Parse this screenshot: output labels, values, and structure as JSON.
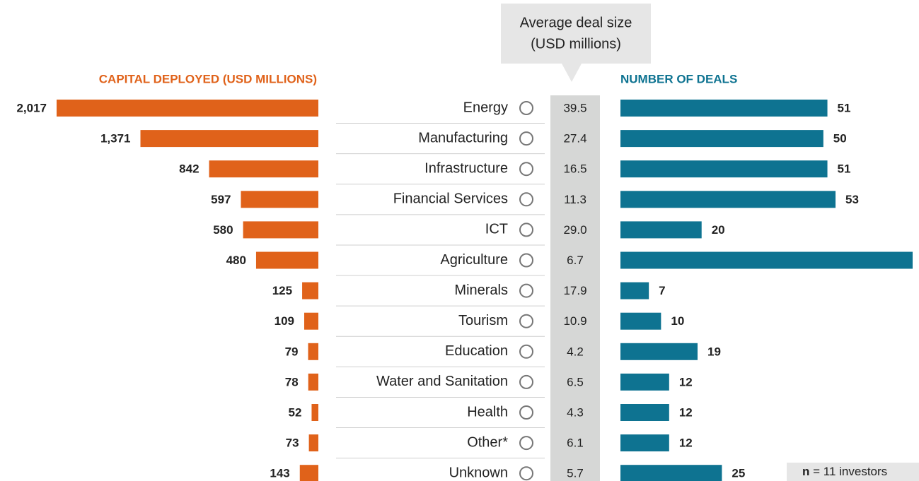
{
  "chart_data": {
    "type": "butterfly",
    "categories": [
      "Energy",
      "Manufacturing",
      "Infrastructure",
      "Financial Services",
      "ICT",
      "Agriculture",
      "Minerals",
      "Tourism",
      "Education",
      "Water and Sanitation",
      "Health",
      "Other*",
      "Unknown"
    ],
    "series": [
      {
        "name": "CAPITAL DEPLOYED (USD MILLIONS)",
        "color": "#e0621a",
        "values": [
          2017,
          1371,
          842,
          597,
          580,
          480,
          125,
          109,
          79,
          78,
          52,
          73,
          143
        ],
        "value_labels": [
          "2,017",
          "1,371",
          "842",
          "597",
          "580",
          "480",
          "125",
          "109",
          "79",
          "78",
          "52",
          "73",
          "143"
        ]
      },
      {
        "name": "NUMBER OF DEALS",
        "color": "#0e7391",
        "values": [
          51,
          50,
          51,
          53,
          20,
          72,
          7,
          10,
          19,
          12,
          12,
          12,
          25
        ]
      }
    ],
    "column": {
      "title": [
        "Average deal size",
        "(USD millions)"
      ],
      "values": [
        39.5,
        27.4,
        16.5,
        11.3,
        29.0,
        6.7,
        17.9,
        10.9,
        4.2,
        6.5,
        4.3,
        6.1,
        5.7
      ],
      "value_labels": [
        "39.5",
        "27.4",
        "16.5",
        "11.3",
        "29.0",
        "6.7",
        "17.9",
        "10.9",
        "4.2",
        "6.5",
        "4.3",
        "6.1",
        "5.7"
      ]
    },
    "note": {
      "label": "n",
      "text": "= 11 investors"
    }
  }
}
